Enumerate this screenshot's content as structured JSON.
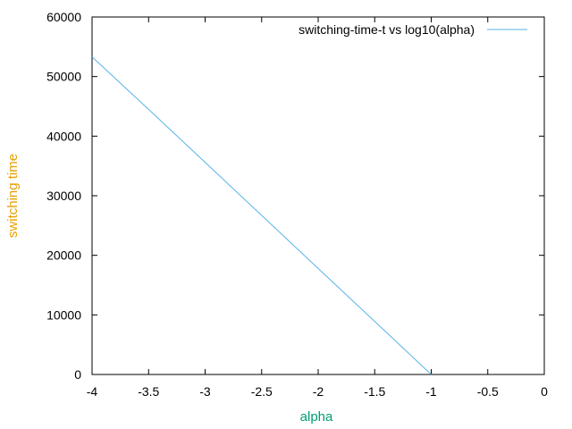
{
  "chart_data": {
    "type": "line",
    "xlabel": "alpha",
    "ylabel": "switching time",
    "xlim": [
      -4,
      0
    ],
    "ylim": [
      0,
      60000
    ],
    "xticks": [
      "-4",
      "-3.5",
      "-3",
      "-2.5",
      "-2",
      "-1.5",
      "-1",
      "-0.5",
      "0"
    ],
    "yticks": [
      "0",
      "10000",
      "20000",
      "30000",
      "40000",
      "50000",
      "60000"
    ],
    "grid": false,
    "legend_position": "top-right",
    "colors": {
      "series": "#56b4e9",
      "xlabel": "#009e73",
      "ylabel": "#e69f00"
    },
    "series": [
      {
        "name": "switching-time-t vs log10(alpha)",
        "x": [
          -4,
          -3.5,
          -3,
          -2.5,
          -2,
          -1.5,
          -1
        ],
        "y": [
          53300,
          44500,
          35600,
          26700,
          17800,
          8900,
          0
        ]
      }
    ]
  }
}
